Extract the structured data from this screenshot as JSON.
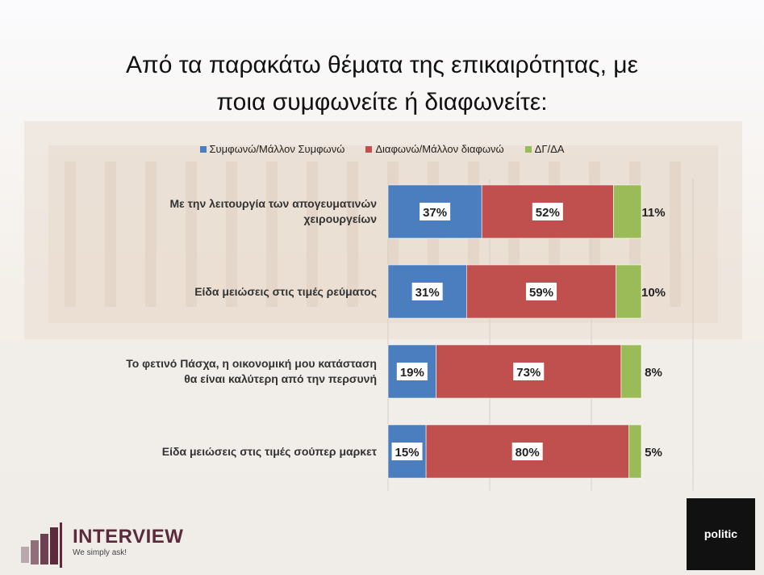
{
  "title_line1": "Από τα παρακάτω θέματα της επικαιρότητας, με",
  "title_line2": "ποια συμφωνείτε ή διαφωνείτε:",
  "logos": {
    "interview_name": "INTERVIEW",
    "interview_tagline": "We simply ask!",
    "politic_name": "politic"
  },
  "colors": {
    "agree": "#4a7ebf",
    "disagree": "#c0504d",
    "dkna": "#9bbb59"
  },
  "chart_data": {
    "type": "bar",
    "orientation": "horizontal",
    "stacked": true,
    "legend_position": "top",
    "categories": [
      "Με την λειτουργία των απογευματινών χειρουργείων",
      "Είδα μειώσεις στις τιμές ρεύματος",
      "Το φετινό Πάσχα, η οικονομική μου κατάσταση θα είναι καλύτερη από την περσυνή",
      "Είδα μειώσεις στις τιμές σούπερ μαρκετ"
    ],
    "series": [
      {
        "name": "Συμφωνώ/Μάλλον Συμφωνώ",
        "values": [
          37,
          31,
          19,
          15
        ],
        "labels": [
          "37%",
          "31%",
          "19%",
          "15%"
        ]
      },
      {
        "name": "Διαφωνώ/Μάλλον διαφωνώ",
        "values": [
          52,
          59,
          73,
          80
        ],
        "labels": [
          "52%",
          "59%",
          "73%",
          "80%"
        ]
      },
      {
        "name": "ΔΓ/ΔΑ",
        "values": [
          11,
          10,
          8,
          5
        ],
        "labels": [
          "11%",
          "10%",
          "8%",
          "5%"
        ]
      }
    ],
    "xlim": [
      0,
      100
    ]
  },
  "category_lines": [
    [
      "Με την λειτουργία των απογευματινών",
      "χειρουργείων"
    ],
    [
      "Είδα μειώσεις στις τιμές ρεύματος"
    ],
    [
      "Το φετινό Πάσχα, η οικονομική μου κατάσταση",
      "θα είναι καλύτερη από την περσυνή"
    ],
    [
      "Είδα μειώσεις στις τιμές σούπερ μαρκετ"
    ]
  ]
}
